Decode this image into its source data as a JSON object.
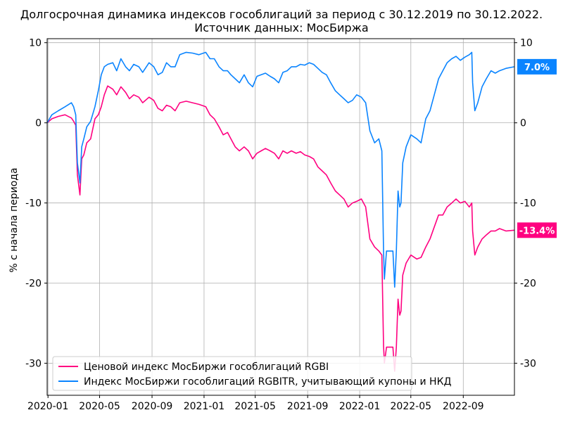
{
  "chart_data": {
    "type": "line",
    "title": "Долгосрочная динамика индексов гособлигаций за период с 30.12.2019 по 30.12.2022.",
    "subtitle": "Источник данных: МосБиржа",
    "ylabel": "% с начала периода",
    "xlabel": "",
    "ylim": [
      -34,
      10.5
    ],
    "xlim": [
      "2019-12-30",
      "2022-12-30"
    ],
    "grid": true,
    "legend_position": "bottom-left",
    "x_ticks": [
      "2020-01",
      "2020-05",
      "2020-09",
      "2021-01",
      "2021-05",
      "2021-09",
      "2022-01",
      "2022-05",
      "2022-09"
    ],
    "y_ticks_left": [
      "10",
      "0",
      "-10",
      "-20",
      "-30"
    ],
    "y_ticks_right": [
      "10",
      "0",
      "-10",
      "-20",
      "-30"
    ],
    "y_tick_values": [
      10,
      0,
      -10,
      -20,
      -30
    ],
    "series": [
      {
        "name": "Ценовой индекс МосБиржи гособлигаций RGBI",
        "color": "#ff0080",
        "end_label": "-13.4%",
        "points": [
          [
            "2019-12-30",
            0
          ],
          [
            "2020-01-10",
            0.5
          ],
          [
            "2020-01-25",
            0.8
          ],
          [
            "2020-02-10",
            1.0
          ],
          [
            "2020-02-25",
            0.6
          ],
          [
            "2020-03-01",
            0.2
          ],
          [
            "2020-03-06",
            -0.3
          ],
          [
            "2020-03-10",
            -6.5
          ],
          [
            "2020-03-16",
            -9.0
          ],
          [
            "2020-03-20",
            -4.5
          ],
          [
            "2020-03-25",
            -4.0
          ],
          [
            "2020-04-01",
            -2.5
          ],
          [
            "2020-04-10",
            -2.0
          ],
          [
            "2020-04-20",
            0.5
          ],
          [
            "2020-04-28",
            1.0
          ],
          [
            "2020-05-05",
            2.0
          ],
          [
            "2020-05-12",
            3.5
          ],
          [
            "2020-05-20",
            4.6
          ],
          [
            "2020-06-01",
            4.2
          ],
          [
            "2020-06-10",
            3.5
          ],
          [
            "2020-06-20",
            4.5
          ],
          [
            "2020-07-01",
            3.8
          ],
          [
            "2020-07-10",
            3.0
          ],
          [
            "2020-07-20",
            3.5
          ],
          [
            "2020-08-01",
            3.2
          ],
          [
            "2020-08-10",
            2.5
          ],
          [
            "2020-08-25",
            3.2
          ],
          [
            "2020-09-05",
            2.8
          ],
          [
            "2020-09-15",
            1.8
          ],
          [
            "2020-09-25",
            1.5
          ],
          [
            "2020-10-05",
            2.2
          ],
          [
            "2020-10-15",
            2.0
          ],
          [
            "2020-10-25",
            1.5
          ],
          [
            "2020-11-05",
            2.5
          ],
          [
            "2020-11-20",
            2.7
          ],
          [
            "2020-12-05",
            2.5
          ],
          [
            "2020-12-20",
            2.3
          ],
          [
            "2021-01-05",
            2.0
          ],
          [
            "2021-01-15",
            1.0
          ],
          [
            "2021-01-25",
            0.5
          ],
          [
            "2021-02-05",
            -0.5
          ],
          [
            "2021-02-15",
            -1.5
          ],
          [
            "2021-02-25",
            -1.2
          ],
          [
            "2021-03-05",
            -2.0
          ],
          [
            "2021-03-15",
            -3.0
          ],
          [
            "2021-03-25",
            -3.5
          ],
          [
            "2021-04-05",
            -3.0
          ],
          [
            "2021-04-15",
            -3.5
          ],
          [
            "2021-04-25",
            -4.5
          ],
          [
            "2021-05-05",
            -3.8
          ],
          [
            "2021-05-15",
            -3.5
          ],
          [
            "2021-05-25",
            -3.2
          ],
          [
            "2021-06-05",
            -3.5
          ],
          [
            "2021-06-15",
            -3.8
          ],
          [
            "2021-06-25",
            -4.5
          ],
          [
            "2021-07-05",
            -3.5
          ],
          [
            "2021-07-15",
            -3.8
          ],
          [
            "2021-07-25",
            -3.5
          ],
          [
            "2021-08-05",
            -3.8
          ],
          [
            "2021-08-15",
            -3.6
          ],
          [
            "2021-08-25",
            -4.0
          ],
          [
            "2021-09-05",
            -4.2
          ],
          [
            "2021-09-15",
            -4.5
          ],
          [
            "2021-09-25",
            -5.5
          ],
          [
            "2021-10-05",
            -6.0
          ],
          [
            "2021-10-15",
            -6.5
          ],
          [
            "2021-10-25",
            -7.5
          ],
          [
            "2021-11-05",
            -8.5
          ],
          [
            "2021-11-15",
            -9.0
          ],
          [
            "2021-11-25",
            -9.5
          ],
          [
            "2021-12-05",
            -10.5
          ],
          [
            "2021-12-15",
            -10.0
          ],
          [
            "2021-12-25",
            -9.8
          ],
          [
            "2022-01-05",
            -9.5
          ],
          [
            "2022-01-15",
            -10.5
          ],
          [
            "2022-01-25",
            -14.5
          ],
          [
            "2022-02-05",
            -15.5
          ],
          [
            "2022-02-15",
            -16.0
          ],
          [
            "2022-02-22",
            -16.5
          ],
          [
            "2022-02-26",
            -27.8
          ],
          [
            "2022-02-28",
            -30.0
          ],
          [
            "2022-03-05",
            -28.0
          ],
          [
            "2022-03-20",
            -28.0
          ],
          [
            "2022-03-24",
            -31.0
          ],
          [
            "2022-03-28",
            -28.0
          ],
          [
            "2022-04-01",
            -22.0
          ],
          [
            "2022-04-05",
            -24.0
          ],
          [
            "2022-04-08",
            -23.5
          ],
          [
            "2022-04-12",
            -19.0
          ],
          [
            "2022-04-20",
            -17.5
          ],
          [
            "2022-05-01",
            -16.5
          ],
          [
            "2022-05-15",
            -17.0
          ],
          [
            "2022-05-25",
            -16.8
          ],
          [
            "2022-06-05",
            -15.5
          ],
          [
            "2022-06-15",
            -14.5
          ],
          [
            "2022-06-25",
            -13.0
          ],
          [
            "2022-07-05",
            -11.5
          ],
          [
            "2022-07-15",
            -11.5
          ],
          [
            "2022-07-25",
            -10.5
          ],
          [
            "2022-08-05",
            -10.0
          ],
          [
            "2022-08-15",
            -9.5
          ],
          [
            "2022-08-25",
            -10.0
          ],
          [
            "2022-09-05",
            -9.8
          ],
          [
            "2022-09-15",
            -10.5
          ],
          [
            "2022-09-21",
            -10.0
          ],
          [
            "2022-09-23",
            -13.5
          ],
          [
            "2022-09-28",
            -16.5
          ],
          [
            "2022-10-05",
            -15.5
          ],
          [
            "2022-10-15",
            -14.5
          ],
          [
            "2022-10-25",
            -14.0
          ],
          [
            "2022-11-05",
            -13.5
          ],
          [
            "2022-11-15",
            -13.5
          ],
          [
            "2022-11-25",
            -13.2
          ],
          [
            "2022-12-10",
            -13.5
          ],
          [
            "2022-12-30",
            -13.4
          ]
        ]
      },
      {
        "name": "Индекс МосБиржи гособлигаций RGBITR, учитывающий купоны и НКД",
        "color": "#0a84ff",
        "end_label": "7.0%",
        "points": [
          [
            "2019-12-30",
            0
          ],
          [
            "2020-01-10",
            1.0
          ],
          [
            "2020-01-25",
            1.5
          ],
          [
            "2020-02-10",
            2.0
          ],
          [
            "2020-02-25",
            2.5
          ],
          [
            "2020-03-01",
            2.0
          ],
          [
            "2020-03-06",
            1.0
          ],
          [
            "2020-03-10",
            -5.0
          ],
          [
            "2020-03-16",
            -7.5
          ],
          [
            "2020-03-20",
            -3.0
          ],
          [
            "2020-03-25",
            -2.0
          ],
          [
            "2020-04-01",
            -0.5
          ],
          [
            "2020-04-10",
            0.2
          ],
          [
            "2020-04-20",
            2.0
          ],
          [
            "2020-04-28",
            4.0
          ],
          [
            "2020-05-05",
            6.0
          ],
          [
            "2020-05-12",
            7.0
          ],
          [
            "2020-05-20",
            7.3
          ],
          [
            "2020-06-01",
            7.5
          ],
          [
            "2020-06-10",
            6.5
          ],
          [
            "2020-06-20",
            8.0
          ],
          [
            "2020-07-01",
            7.0
          ],
          [
            "2020-07-10",
            6.5
          ],
          [
            "2020-07-20",
            7.3
          ],
          [
            "2020-08-01",
            7.0
          ],
          [
            "2020-08-10",
            6.3
          ],
          [
            "2020-08-25",
            7.5
          ],
          [
            "2020-09-05",
            7.0
          ],
          [
            "2020-09-15",
            6.0
          ],
          [
            "2020-09-25",
            6.3
          ],
          [
            "2020-10-05",
            7.5
          ],
          [
            "2020-10-15",
            7.0
          ],
          [
            "2020-10-25",
            7.0
          ],
          [
            "2020-11-05",
            8.5
          ],
          [
            "2020-11-20",
            8.8
          ],
          [
            "2020-12-05",
            8.7
          ],
          [
            "2020-12-20",
            8.5
          ],
          [
            "2021-01-05",
            8.8
          ],
          [
            "2021-01-15",
            8.0
          ],
          [
            "2021-01-25",
            8.0
          ],
          [
            "2021-02-05",
            7.0
          ],
          [
            "2021-02-15",
            6.5
          ],
          [
            "2021-02-25",
            6.5
          ],
          [
            "2021-03-05",
            6.0
          ],
          [
            "2021-03-15",
            5.5
          ],
          [
            "2021-03-25",
            5.0
          ],
          [
            "2021-04-05",
            6.0
          ],
          [
            "2021-04-15",
            5.0
          ],
          [
            "2021-04-25",
            4.5
          ],
          [
            "2021-05-05",
            5.8
          ],
          [
            "2021-05-15",
            6.0
          ],
          [
            "2021-05-25",
            6.2
          ],
          [
            "2021-06-05",
            5.8
          ],
          [
            "2021-06-15",
            5.5
          ],
          [
            "2021-06-25",
            5.0
          ],
          [
            "2021-07-05",
            6.3
          ],
          [
            "2021-07-15",
            6.5
          ],
          [
            "2021-07-25",
            7.0
          ],
          [
            "2021-08-05",
            7.0
          ],
          [
            "2021-08-15",
            7.3
          ],
          [
            "2021-08-25",
            7.2
          ],
          [
            "2021-09-05",
            7.5
          ],
          [
            "2021-09-15",
            7.3
          ],
          [
            "2021-09-25",
            6.8
          ],
          [
            "2021-10-05",
            6.3
          ],
          [
            "2021-10-15",
            6.0
          ],
          [
            "2021-10-25",
            5.0
          ],
          [
            "2021-11-05",
            4.0
          ],
          [
            "2021-11-15",
            3.5
          ],
          [
            "2021-11-25",
            3.0
          ],
          [
            "2021-12-05",
            2.5
          ],
          [
            "2021-12-15",
            2.8
          ],
          [
            "2021-12-25",
            3.5
          ],
          [
            "2022-01-05",
            3.2
          ],
          [
            "2022-01-15",
            2.5
          ],
          [
            "2022-01-25",
            -1.0
          ],
          [
            "2022-02-05",
            -2.5
          ],
          [
            "2022-02-15",
            -2.0
          ],
          [
            "2022-02-22",
            -3.5
          ],
          [
            "2022-02-26",
            -16.0
          ],
          [
            "2022-02-28",
            -19.5
          ],
          [
            "2022-03-05",
            -16.0
          ],
          [
            "2022-03-20",
            -16.0
          ],
          [
            "2022-03-24",
            -20.5
          ],
          [
            "2022-03-28",
            -16.0
          ],
          [
            "2022-04-01",
            -8.5
          ],
          [
            "2022-04-05",
            -10.5
          ],
          [
            "2022-04-08",
            -10.0
          ],
          [
            "2022-04-12",
            -5.0
          ],
          [
            "2022-04-20",
            -3.0
          ],
          [
            "2022-05-01",
            -1.5
          ],
          [
            "2022-05-15",
            -2.0
          ],
          [
            "2022-05-25",
            -2.5
          ],
          [
            "2022-06-05",
            0.5
          ],
          [
            "2022-06-15",
            1.5
          ],
          [
            "2022-06-25",
            3.5
          ],
          [
            "2022-07-05",
            5.5
          ],
          [
            "2022-07-15",
            6.5
          ],
          [
            "2022-07-25",
            7.5
          ],
          [
            "2022-08-05",
            8.0
          ],
          [
            "2022-08-15",
            8.3
          ],
          [
            "2022-08-25",
            7.8
          ],
          [
            "2022-09-05",
            8.2
          ],
          [
            "2022-09-15",
            8.5
          ],
          [
            "2022-09-21",
            8.8
          ],
          [
            "2022-09-23",
            5.0
          ],
          [
            "2022-09-28",
            1.5
          ],
          [
            "2022-10-05",
            2.5
          ],
          [
            "2022-10-15",
            4.5
          ],
          [
            "2022-10-25",
            5.5
          ],
          [
            "2022-11-05",
            6.5
          ],
          [
            "2022-11-15",
            6.2
          ],
          [
            "2022-11-25",
            6.5
          ],
          [
            "2022-12-10",
            6.8
          ],
          [
            "2022-12-30",
            7.0
          ]
        ]
      }
    ]
  }
}
